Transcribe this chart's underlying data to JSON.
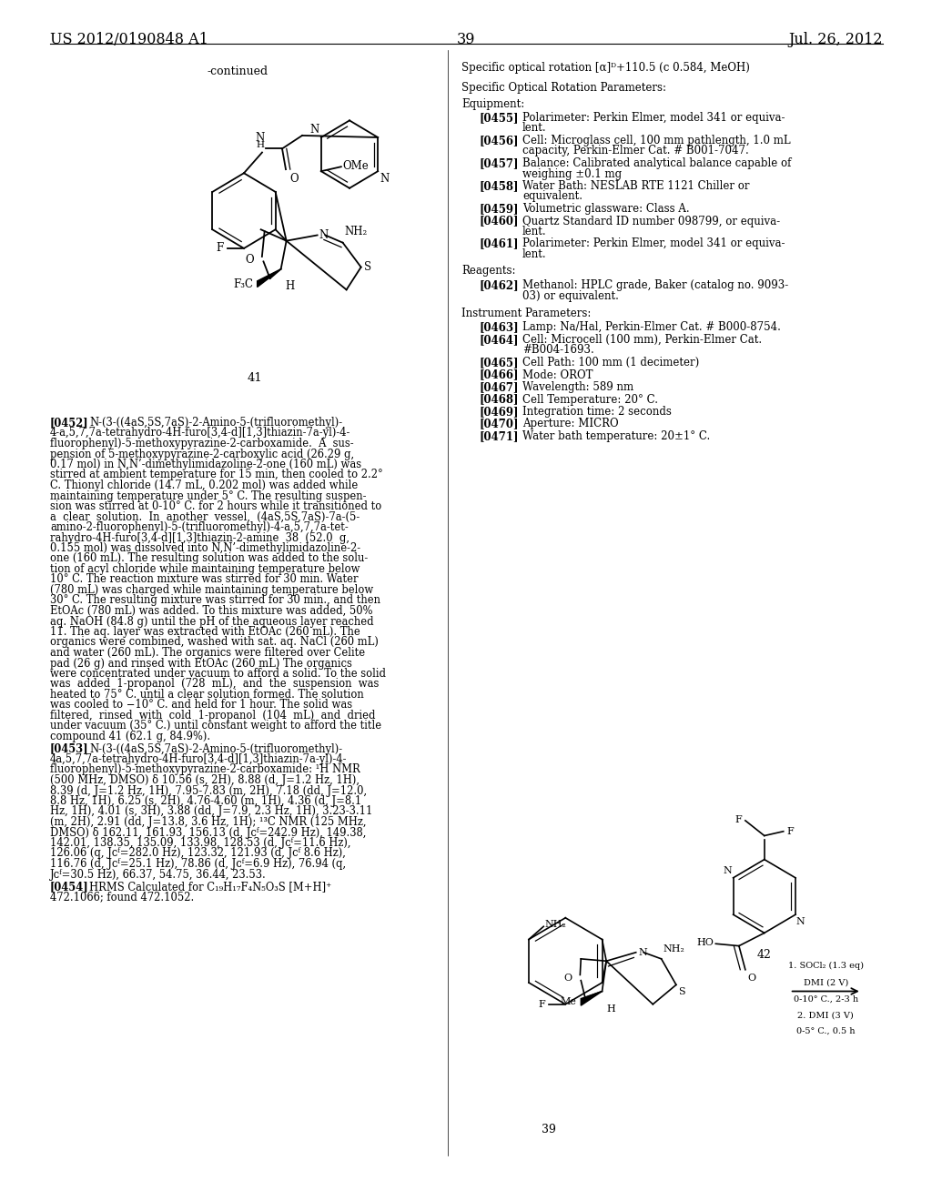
{
  "bg": "#ffffff",
  "header_left": "US 2012/0190848 A1",
  "header_right": "Jul. 26, 2012",
  "page_num": "39"
}
